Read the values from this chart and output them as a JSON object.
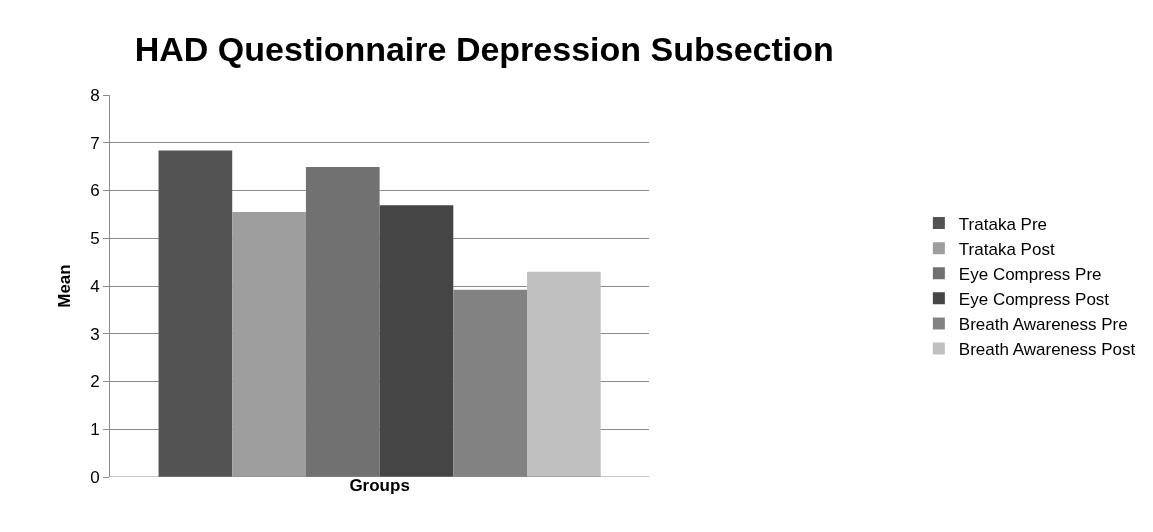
{
  "chart_data": {
    "type": "bar",
    "title": "HAD Questionnaire Depression Subsection",
    "xlabel": "Groups",
    "ylabel": "Mean",
    "categories": [
      null
    ],
    "series": [
      {
        "name": "Trataka Pre",
        "color": "#535353",
        "values": [
          6.84
        ]
      },
      {
        "name": "Trataka Post",
        "color": "#9e9e9e",
        "values": [
          5.55
        ]
      },
      {
        "name": "Eye Compress Pre",
        "color": "#717171",
        "values": [
          6.49
        ]
      },
      {
        "name": "Eye Compress Post",
        "color": "#454545",
        "values": [
          5.69
        ]
      },
      {
        "name": "Breath Awareness Pre",
        "color": "#828282",
        "values": [
          3.92
        ]
      },
      {
        "name": "Breath Awareness Post",
        "color": "#c0c0c0",
        "values": [
          4.3
        ]
      }
    ],
    "ylim": [
      0,
      8
    ],
    "yticks": [
      0,
      1,
      2,
      3,
      4,
      5,
      6,
      7,
      8
    ],
    "grid": "y",
    "legend": "right"
  }
}
